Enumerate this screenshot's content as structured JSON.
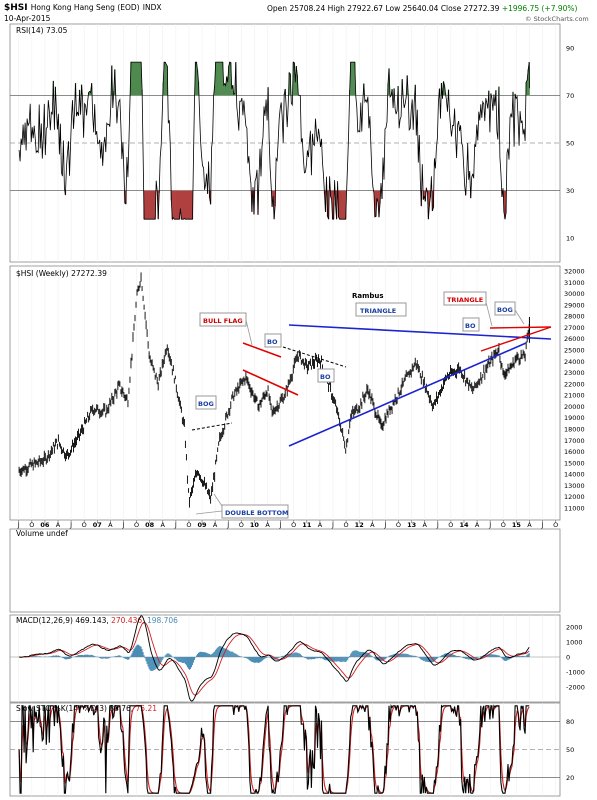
{
  "header": {
    "symbol": "$HSI",
    "name": "Hong Kong Hang Seng (EOD)",
    "exchange": "INDX",
    "date": "10-Apr-2015",
    "open_label": "Open",
    "open": "25708.24",
    "high_label": "High",
    "high": "27922.67",
    "low_label": "Low",
    "low": "25640.04",
    "close_label": "Close",
    "close": "27272.39",
    "change": "+1996.75 (+7.90%)",
    "watermark": "© StockCharts.com"
  },
  "colors": {
    "price": "#000000",
    "trendline_blue": "#1a24d0",
    "trendline_red": "#e00000",
    "macd_hist": "#4a8db5",
    "stoch_d": "#d42020",
    "rsi_overbought_fill": "#4f8a4f",
    "rsi_oversold_fill": "#b04040",
    "frame": "#888888"
  },
  "panels": {
    "rsi_label": "RSI(14) 73.05",
    "price_label": "$HSI (Weekly) 27272.39",
    "volume_label": "Volume undef",
    "macd_label": "MACD(12,26,9) 469.143, ",
    "macd_signal": "270.436",
    "macd_sep": ", ",
    "macd_hist": "198.706",
    "sto_label": "Slow STO %K(14) %D(3) 83.76, ",
    "sto_d": "75.21"
  },
  "annotations": {
    "rambus": "Rambus",
    "triangle_blue": "TRIANGLE",
    "triangle_red": "TRIANGLE",
    "bull_flag": "BULL FLAG",
    "bo1": "BO",
    "bo2": "BO",
    "bo3": "BO",
    "bog1": "BOG",
    "bog2": "BOG",
    "double_bottom": "DOUBLE BOTTOM"
  },
  "chart_data": [
    {
      "type": "line",
      "title": "RSI(14) 73.05",
      "ylim": [
        0,
        100
      ],
      "ticks": [
        10,
        30,
        50,
        70,
        90
      ],
      "tick_labels": [
        "10",
        "30",
        "50",
        "70",
        "90"
      ],
      "reference_lines": [
        30,
        50,
        70
      ],
      "last_value": 73.05
    },
    {
      "type": "line",
      "title": "$HSI (Weekly) 27272.39",
      "last_value": 27272.39,
      "ylim": [
        11000,
        32000
      ],
      "tick_labels": [
        "11000",
        "12000",
        "13000",
        "14000",
        "15000",
        "16000",
        "17000",
        "18000",
        "19000",
        "20000",
        "21000",
        "22000",
        "23000",
        "24000",
        "25000",
        "26000",
        "27000",
        "28000",
        "29000",
        "30000",
        "31000",
        "32000"
      ],
      "x_tick_labels": [
        "J",
        "O",
        "06",
        "A",
        "J",
        "O",
        "07",
        "A",
        "J",
        "O",
        "08",
        "A",
        "J",
        "O",
        "09",
        "A",
        "J",
        "O",
        "10",
        "A",
        "J",
        "O",
        "11",
        "A",
        "J",
        "O",
        "12",
        "A",
        "J",
        "O",
        "13",
        "A",
        "J",
        "O",
        "14",
        "A",
        "J",
        "O",
        "15",
        "A",
        "J",
        "O"
      ],
      "x_dates": [
        "2005-07",
        "2005-10",
        "2006-01",
        "2006-04",
        "2006-07",
        "2006-10",
        "2007-01",
        "2007-04",
        "2007-07",
        "2007-10",
        "2008-01",
        "2008-04",
        "2008-07",
        "2008-10",
        "2009-01",
        "2009-04",
        "2009-07",
        "2009-10",
        "2010-01",
        "2010-04",
        "2010-07",
        "2010-10",
        "2011-01",
        "2011-04",
        "2011-07",
        "2011-10",
        "2012-01",
        "2012-04",
        "2012-07",
        "2012-10",
        "2013-01",
        "2013-04",
        "2013-07",
        "2013-10",
        "2014-01",
        "2014-04",
        "2014-07",
        "2014-10",
        "2015-01",
        "2015-04",
        "2015-07",
        "2015-10"
      ],
      "series": [
        {
          "values": [
            [
              "2005-07",
              14300
            ],
            [
              "2005-10",
              14800
            ],
            [
              "2006-01",
              15300
            ],
            [
              "2006-04",
              16900
            ],
            [
              "2006-06",
              15600
            ],
            [
              "2006-09",
              17500
            ],
            [
              "2006-12",
              19800
            ],
            [
              "2007-03",
              19500
            ],
            [
              "2007-06",
              21800
            ],
            [
              "2007-08",
              20500
            ],
            [
              "2007-10",
              29500
            ],
            [
              "2007-11",
              31600
            ],
            [
              "2007-12",
              28000
            ],
            [
              "2008-01",
              24200
            ],
            [
              "2008-03",
              22000
            ],
            [
              "2008-05",
              25500
            ],
            [
              "2008-07",
              22000
            ],
            [
              "2008-09",
              18000
            ],
            [
              "2008-10",
              11500
            ],
            [
              "2008-11",
              13000
            ],
            [
              "2008-12",
              14400
            ],
            [
              "2009-03",
              11800
            ],
            [
              "2009-05",
              17000
            ],
            [
              "2009-08",
              20800
            ],
            [
              "2009-11",
              22600
            ],
            [
              "2010-01",
              20800
            ],
            [
              "2010-02",
              20000
            ],
            [
              "2010-04",
              21500
            ],
            [
              "2010-05",
              19400
            ],
            [
              "2010-08",
              21000
            ],
            [
              "2010-11",
              24600
            ],
            [
              "2011-01",
              23500
            ],
            [
              "2011-04",
              24200
            ],
            [
              "2011-06",
              22000
            ],
            [
              "2011-08",
              19500
            ],
            [
              "2011-10",
              16200
            ],
            [
              "2011-11",
              19100
            ],
            [
              "2012-01",
              20000
            ],
            [
              "2012-03",
              21500
            ],
            [
              "2012-06",
              18200
            ],
            [
              "2012-09",
              20500
            ],
            [
              "2012-12",
              22600
            ],
            [
              "2013-02",
              23900
            ],
            [
              "2013-06",
              20000
            ],
            [
              "2013-09",
              22600
            ],
            [
              "2013-12",
              23400
            ],
            [
              "2014-03",
              21400
            ],
            [
              "2014-06",
              23300
            ],
            [
              "2014-09",
              25100
            ],
            [
              "2014-10",
              22800
            ],
            [
              "2014-12",
              23600
            ],
            [
              "2015-01",
              24300
            ],
            [
              "2015-03",
              24500
            ],
            [
              "2015-04",
              27272
            ]
          ]
        }
      ]
    },
    {
      "type": "line",
      "title": "MACD(12,26,9) 469.143, 270.436, 198.706",
      "ylim": [
        -2800,
        2800
      ],
      "tick_labels": [
        "2000",
        "1000",
        "0",
        "-1000",
        "-2000"
      ],
      "series": [
        {
          "name": "MACD",
          "last_value": 469.143
        },
        {
          "name": "Signal",
          "last_value": 270.436
        },
        {
          "name": "Histogram",
          "last_value": 198.706
        }
      ]
    },
    {
      "type": "line",
      "title": "Slow STO %K(14) %D(3) 83.76, 75.21",
      "ylim": [
        0,
        100
      ],
      "tick_labels": [
        "80",
        "50",
        "20"
      ],
      "reference_lines": [
        20,
        50,
        80
      ],
      "series": [
        {
          "name": "%K",
          "last_value": 83.76
        },
        {
          "name": "%D",
          "last_value": 75.21
        }
      ]
    }
  ]
}
